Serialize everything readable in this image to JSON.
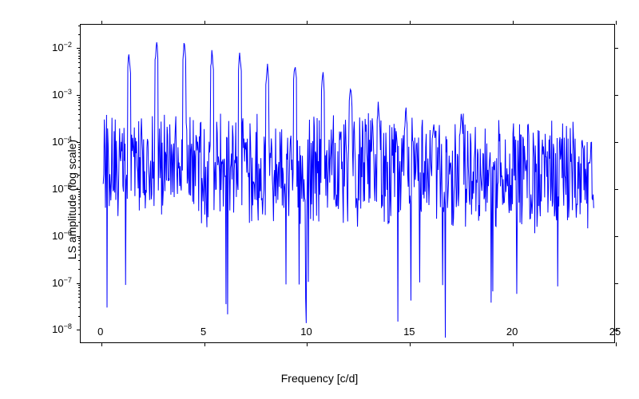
{
  "chart": {
    "type": "line",
    "xlabel": "Frequency [c/d]",
    "ylabel": "LS amplitude (log scale)",
    "xlim": [
      -1,
      25
    ],
    "ylim_log10": [
      -8.3,
      -1.5
    ],
    "background_color": "#ffffff",
    "line_color": "#0000ff",
    "axis_color": "#000000",
    "tick_color": "#000000",
    "label_fontsize": 14,
    "tick_fontsize": 13,
    "line_width": 1,
    "xticks": [
      0,
      5,
      10,
      15,
      20,
      25
    ],
    "ytick_exponents": [
      -8,
      -7,
      -6,
      -5,
      -4,
      -3,
      -2
    ],
    "data_x_range": [
      0.1,
      24
    ],
    "data_n_points": 900,
    "noise_floor_log10_start": -4.5,
    "noise_floor_log10_end": -4.7,
    "noise_spread_log10": 1.3,
    "harmonic_base_freq": 1.35,
    "harmonic_peaks_log10": [
      -2.1,
      -1.85,
      -1.82,
      -2.05,
      -2.08,
      -2.3,
      -2.3,
      -2.5,
      -2.8,
      -3.2,
      -3.3,
      -3.6,
      -3.4
    ],
    "deep_dips_log10_min": -8.2,
    "seed": 42
  }
}
